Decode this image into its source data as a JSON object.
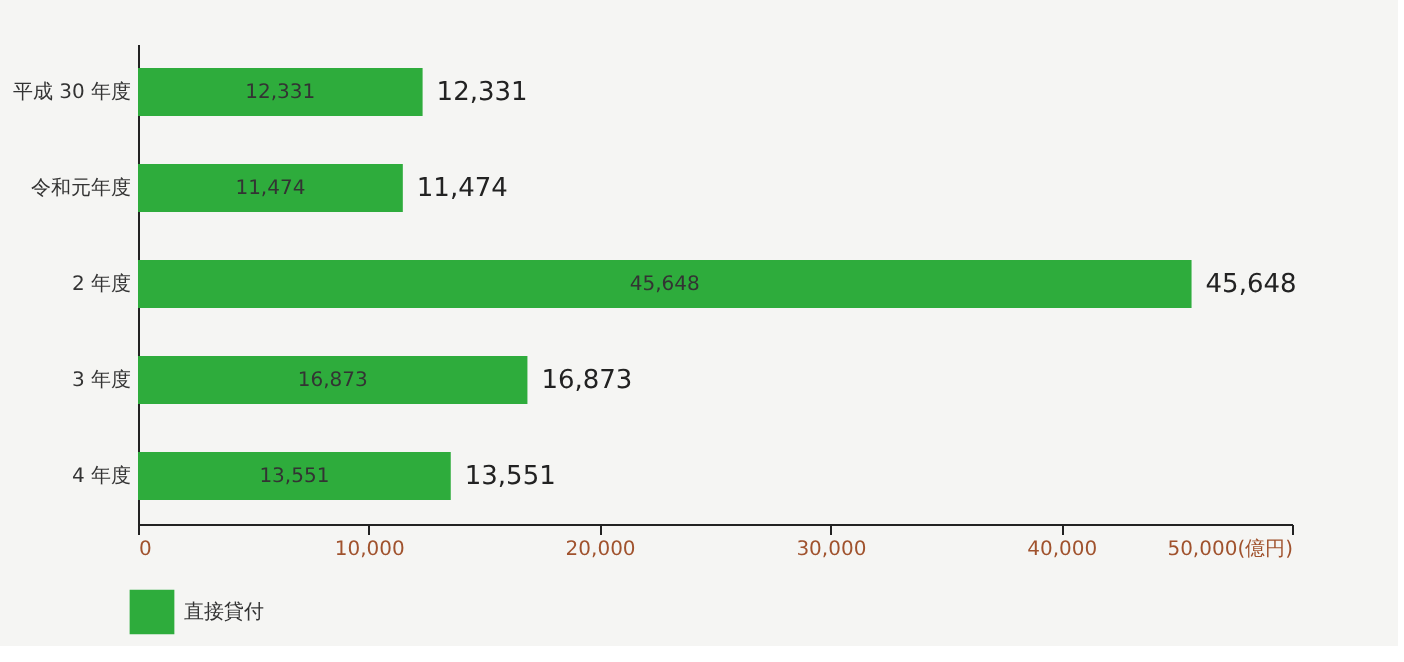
{
  "chart_data": {
    "type": "bar",
    "orientation": "horizontal",
    "categories": [
      "平成 30 年度",
      "令和元年度",
      "2 年度",
      "3 年度",
      "4 年度"
    ],
    "series": [
      {
        "name": "直接貸付",
        "color": "#2eac3c",
        "values": [
          12331,
          11474,
          45648,
          16873,
          13551
        ],
        "value_labels": [
          "12,331",
          "11,474",
          "45,648",
          "16,873",
          "13,551"
        ]
      }
    ],
    "xlim": [
      0,
      50000
    ],
    "xticks": [
      0,
      {
        "value": 10000,
        "label": "10,000"
      },
      {
        "value": 20000,
        "label": "20,000"
      },
      {
        "value": 30000,
        "label": "30,000"
      },
      {
        "value": 40000,
        "label": "40,000"
      },
      {
        "value": 50000,
        "label": "50,000(億円)"
      }
    ],
    "grid": false,
    "legend": "bottom left"
  }
}
